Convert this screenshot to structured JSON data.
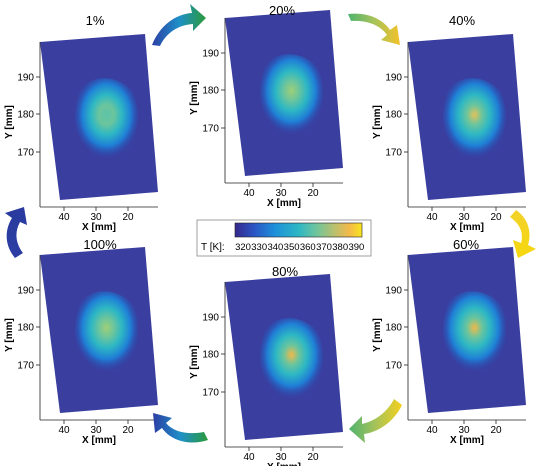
{
  "panels": [
    {
      "key": "p1",
      "title": "1%",
      "intensity": 0.45
    },
    {
      "key": "p20",
      "title": "20%",
      "intensity": 0.6
    },
    {
      "key": "p40",
      "title": "40%",
      "intensity": 0.82
    },
    {
      "key": "p60",
      "title": "60%",
      "intensity": 0.92
    },
    {
      "key": "p80",
      "title": "80%",
      "intensity": 0.88
    },
    {
      "key": "p100",
      "title": "100%",
      "intensity": 0.62
    }
  ],
  "axes": {
    "xlabel": "X [mm]",
    "ylabel": "Y [mm]",
    "xticks": [
      "40",
      "30",
      "20"
    ],
    "yticks": [
      "190",
      "180",
      "170"
    ]
  },
  "colorbar": {
    "label": "T [K]:",
    "ticks": [
      "320",
      "330",
      "340",
      "350",
      "360",
      "370",
      "380",
      "390"
    ],
    "colors": [
      "#3b2f8f",
      "#2a5bc7",
      "#1f90d8",
      "#2cb6c8",
      "#6cc59c",
      "#b5c470",
      "#f0b94a",
      "#f7df1e"
    ]
  }
}
